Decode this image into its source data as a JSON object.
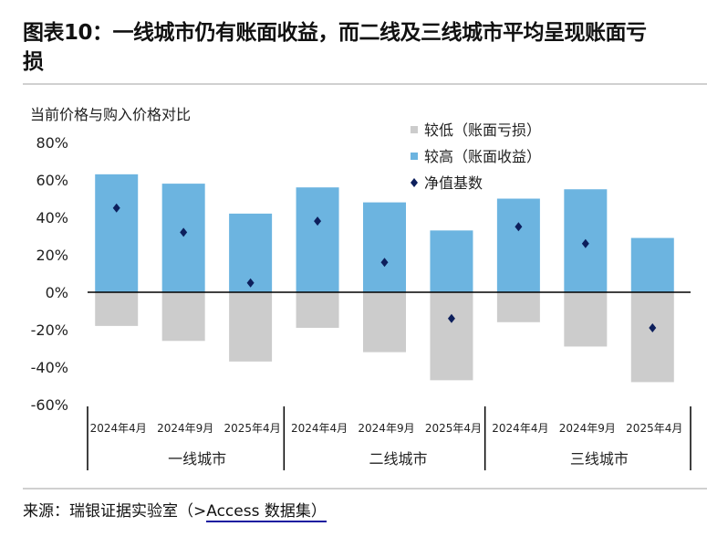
{
  "title": "图表10：一线城市仍有账面收益，而二线及三线城市平均呈现账面亏损",
  "source": {
    "prefix": "来源：瑞银证据实验室（>",
    "link": "Access 数据集）"
  },
  "colors": {
    "higher": "#6cb4e0",
    "lower": "#cccccc",
    "nav": "#0d1f5c",
    "axis": "#000000"
  },
  "chart_data": {
    "type": "bar",
    "ylabel": "当前价格与购入价格对比",
    "ylim": [
      -60,
      80
    ],
    "yticks": [
      -60,
      -40,
      -20,
      0,
      20,
      40,
      60,
      80
    ],
    "ytick_labels": [
      "-60%",
      "-40%",
      "-20%",
      "0%",
      "20%",
      "40%",
      "60%",
      "80%"
    ],
    "categories": [
      "2024年4月",
      "2024年9月",
      "2025年4月",
      "2024年4月",
      "2024年9月",
      "2025年4月",
      "2024年4月",
      "2024年9月",
      "2025年4月"
    ],
    "groups": [
      "一线城市",
      "二线城市",
      "三线城市"
    ],
    "legend_position": "top-right",
    "series": [
      {
        "name": "较低（账面亏损）",
        "type": "bar",
        "values": [
          -18,
          -26,
          -37,
          -19,
          -32,
          -47,
          -16,
          -29,
          -48
        ]
      },
      {
        "name": "较高（账面收益）",
        "type": "bar",
        "values": [
          63,
          58,
          42,
          56,
          48,
          33,
          50,
          55,
          29
        ]
      },
      {
        "name": "净值基数",
        "type": "scatter",
        "marker": "diamond",
        "values": [
          45,
          32,
          5,
          38,
          16,
          -14,
          35,
          26,
          -19
        ]
      }
    ]
  }
}
